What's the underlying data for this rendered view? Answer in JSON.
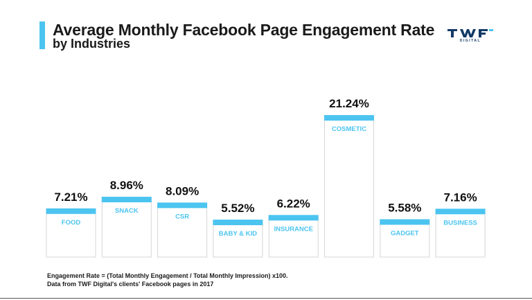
{
  "header": {
    "title": "Average Monthly Facebook Page Engagement Rate",
    "subtitle": "by Industries",
    "accent_color": "#4cc4f0"
  },
  "logo": {
    "mark": "TWF",
    "sub": "DIGITAL",
    "color": "#123a66"
  },
  "chart_data": {
    "type": "bar",
    "title": "Average Monthly Facebook Page Engagement Rate by Industries",
    "categories": [
      "FOOD",
      "SNACK",
      "CSR",
      "BABY & KID",
      "INSURANCE",
      "COSMETIC",
      "GADGET",
      "BUSINESS"
    ],
    "values": [
      7.21,
      8.96,
      8.09,
      5.52,
      6.22,
      21.24,
      5.58,
      7.16
    ],
    "value_labels": [
      "7.21%",
      "8.96%",
      "8.09%",
      "5.52%",
      "6.22%",
      "21.24%",
      "5.58%",
      "7.16%"
    ],
    "unit": "%",
    "bar_color": "#4cc4f0",
    "label_color": "#4cc4f0",
    "grid": false,
    "xlabel": "",
    "ylabel": ""
  },
  "footnotes": [
    "Engagement Rate = (Total Monthly Engagement / Total Monthly Impression) x100.",
    "Data from TWF Digital's clients' Facebook pages in 2017"
  ]
}
